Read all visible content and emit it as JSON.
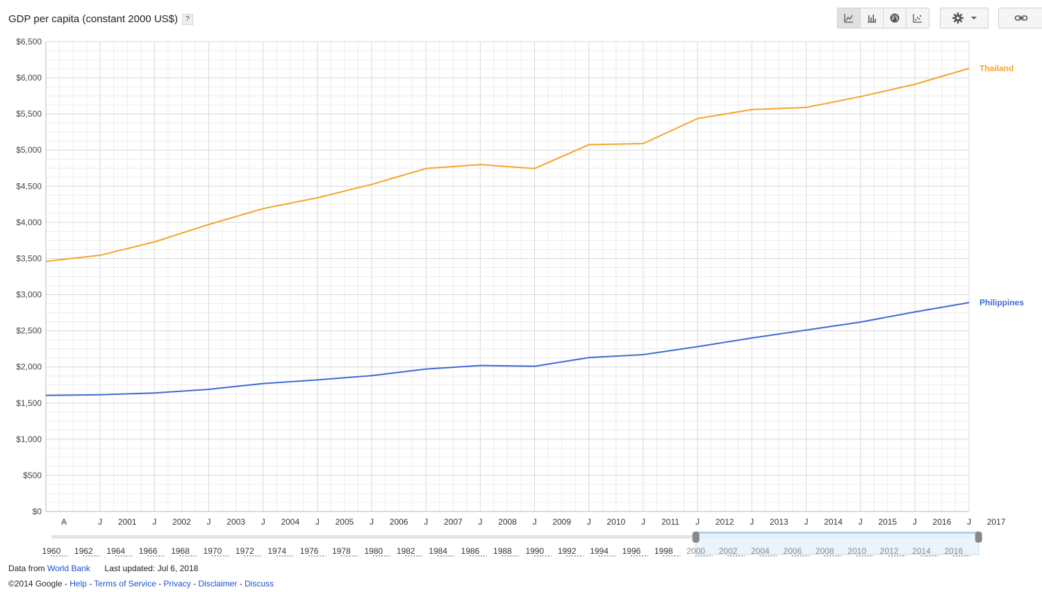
{
  "header": {
    "title": "GDP per capita (constant 2000 US$)",
    "help_label": "?"
  },
  "toolbar": {
    "views": [
      {
        "name": "line-chart-icon",
        "active": true
      },
      {
        "name": "bar-chart-icon",
        "active": false
      },
      {
        "name": "globe-map-icon",
        "active": false
      },
      {
        "name": "scatter-chart-icon",
        "active": false
      }
    ],
    "settings_icon": "gear-icon",
    "dropdown_icon": "chevron-down-icon",
    "link_icon": "link-icon"
  },
  "colors": {
    "thailand": "#f7a327",
    "philippines": "#3e6bd4",
    "grid_major": "#d8d8d8",
    "grid_minor": "#ececec",
    "link": "#1a4fd1"
  },
  "chart_data": {
    "type": "line",
    "title": "GDP per capita (constant 2000 US$)",
    "x": [
      2000,
      2001,
      2002,
      2003,
      2004,
      2005,
      2006,
      2007,
      2008,
      2009,
      2010,
      2011,
      2012,
      2013,
      2014,
      2015,
      2016,
      2017
    ],
    "series": [
      {
        "name": "Thailand",
        "values": [
          3460,
          3545,
          3730,
          3970,
          4190,
          4340,
          4525,
          4745,
          4800,
          4745,
          5075,
          5090,
          5435,
          5560,
          5590,
          5740,
          5910,
          6130
        ]
      },
      {
        "name": "Philippines",
        "values": [
          1605,
          1615,
          1640,
          1690,
          1770,
          1820,
          1880,
          1970,
          2020,
          2010,
          2130,
          2170,
          2280,
          2400,
          2510,
          2620,
          2760,
          2890
        ]
      }
    ],
    "ylim": [
      0,
      6500
    ],
    "y_ticks": [
      "$0",
      "$500",
      "$1,000",
      "$1,500",
      "$2,000",
      "$2,500",
      "$3,000",
      "$3,500",
      "$4,000",
      "$4,500",
      "$5,000",
      "$5,500",
      "$6,000",
      "$6,500"
    ],
    "x_tick_labels": [
      "A",
      "J",
      "2001",
      "J",
      "2002",
      "J",
      "2003",
      "J",
      "2004",
      "J",
      "2005",
      "J",
      "2006",
      "J",
      "2007",
      "J",
      "2008",
      "J",
      "2009",
      "J",
      "2010",
      "J",
      "2011",
      "J",
      "2012",
      "J",
      "2013",
      "J",
      "2014",
      "J",
      "2015",
      "J",
      "2016",
      "J",
      "2017"
    ],
    "grid": true,
    "legend": "right-end labels"
  },
  "range_selector": {
    "years": [
      "1960",
      "1962",
      "1964",
      "1966",
      "1968",
      "1970",
      "1972",
      "1974",
      "1976",
      "1978",
      "1980",
      "1982",
      "1984",
      "1986",
      "1988",
      "1990",
      "1992",
      "1994",
      "1996",
      "1998",
      "2000",
      "2002",
      "2004",
      "2006",
      "2008",
      "2010",
      "2012",
      "2014",
      "2016"
    ],
    "selected_from": 2000,
    "selected_to": 2017
  },
  "footer": {
    "data_from_label": "Data from",
    "data_source": "World Bank",
    "last_updated": "Last updated: Jul 6, 2018",
    "copyright": "©2014 Google -",
    "links": [
      "Help",
      "Terms of Service",
      "Privacy",
      "Disclaimer",
      "Discuss"
    ]
  }
}
